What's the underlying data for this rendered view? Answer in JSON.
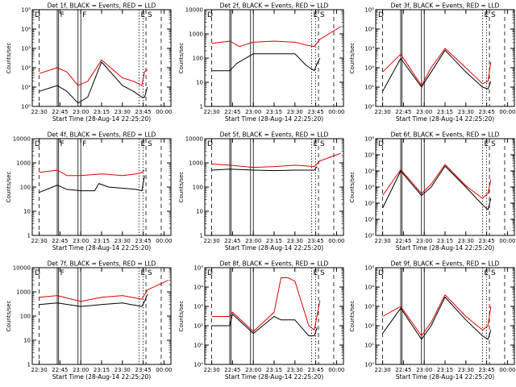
{
  "chart_data": [
    {
      "type": "line",
      "title": "Det 1f, BLACK = Events, RED = LLD",
      "xlabel": "Start Time (28-Aug-14 22:25:20)",
      "ylabel": "Counts/sec",
      "xlim": [
        "22:25",
        "00:05"
      ],
      "xticks": [
        "22:30",
        "22:45",
        "23:00",
        "23:15",
        "23:30",
        "23:45",
        "00:00"
      ],
      "ylim": [
        1,
        100000
      ],
      "yscale": "log",
      "yticks": [
        "10⁰",
        "10¹",
        "10²",
        "10³",
        "10⁴",
        "10⁵"
      ],
      "annotations": [
        "D",
        "F",
        "F",
        "E",
        "S"
      ],
      "series": [
        {
          "color": "#000000",
          "x": [
            "22:30",
            "22:43",
            "22:50",
            "22:58",
            "23:05",
            "23:15",
            "23:30",
            "23:38",
            "23:44",
            "23:46",
            "23:48"
          ],
          "y": [
            6,
            12,
            6,
            1.5,
            3,
            200,
            12,
            6,
            3,
            3,
            10
          ]
        },
        {
          "color": "#e00000",
          "x": [
            "22:30",
            "22:43",
            "22:50",
            "22:58",
            "23:05",
            "23:15",
            "23:30",
            "23:38",
            "23:44",
            "23:46",
            "23:48"
          ],
          "y": [
            50,
            100,
            60,
            12,
            20,
            250,
            30,
            20,
            12,
            60,
            80
          ]
        }
      ]
    },
    {
      "type": "line",
      "title": "Det 2f, BLACK = Events, RED = LLD",
      "xlabel": "Start Time (28-Aug-14 22:25:20)",
      "ylabel": "Counts/sec",
      "xlim": [
        "22:25",
        "00:05"
      ],
      "xticks": [
        "22:30",
        "22:45",
        "23:00",
        "23:15",
        "23:30",
        "23:45",
        "00:00"
      ],
      "ylim": [
        1,
        10000
      ],
      "yscale": "log",
      "yticks": [
        "1",
        "10",
        "100",
        "1000",
        "10000"
      ],
      "annotations": [
        "D",
        "E",
        "S"
      ],
      "series": [
        {
          "color": "#000000",
          "x": [
            "22:30",
            "22:43",
            "22:48",
            "23:00",
            "23:30",
            "23:38",
            "23:44",
            "23:46",
            "23:48"
          ],
          "y": [
            30,
            30,
            60,
            150,
            150,
            50,
            30,
            60,
            100
          ]
        },
        {
          "color": "#e00000",
          "x": [
            "22:30",
            "22:43",
            "22:50",
            "23:00",
            "23:15",
            "23:30",
            "23:38",
            "23:44",
            "23:48",
            "00:03"
          ],
          "y": [
            400,
            500,
            300,
            450,
            500,
            450,
            350,
            300,
            600,
            2000
          ]
        }
      ]
    },
    {
      "type": "line",
      "title": "Det 3f, BLACK = Events, RED = LLD",
      "xlabel": "Start Time (28-Aug-14 22:25:20)",
      "ylabel": "Counts/sec",
      "xlim": [
        "22:25",
        "00:05"
      ],
      "xticks": [
        "22:30",
        "22:45",
        "23:00",
        "23:15",
        "23:30",
        "23:45",
        "00:00"
      ],
      "ylim": [
        1,
        100000
      ],
      "yscale": "log",
      "yticks": [
        "10⁰",
        "10¹",
        "10²",
        "10³",
        "10⁴",
        "10⁵"
      ],
      "annotations": [
        "D",
        "E",
        "S"
      ],
      "series": [
        {
          "color": "#000000",
          "x": [
            "22:30",
            "22:43",
            "22:58",
            "23:05",
            "23:15",
            "23:30",
            "23:42",
            "23:46",
            "23:48"
          ],
          "y": [
            6,
            300,
            10,
            60,
            800,
            60,
            10,
            8,
            20
          ]
        },
        {
          "color": "#e00000",
          "x": [
            "22:30",
            "22:43",
            "22:58",
            "23:05",
            "23:15",
            "23:30",
            "23:42",
            "23:46",
            "23:48"
          ],
          "y": [
            60,
            500,
            12,
            100,
            1000,
            100,
            15,
            20,
            200
          ]
        }
      ]
    },
    {
      "type": "line",
      "title": "Det 4f, BLACK = Events, RED = LLD",
      "xlabel": "Start Time (28-Aug-14 22:25:20)",
      "ylabel": "Counts/sec",
      "xlim": [
        "22:25",
        "00:05"
      ],
      "xticks": [
        "22:30",
        "22:45",
        "23:00",
        "23:15",
        "23:30",
        "23:45",
        "00:00"
      ],
      "ylim": [
        1,
        10000
      ],
      "yscale": "log",
      "yticks": [
        "1",
        "10",
        "100",
        "1000",
        "10000"
      ],
      "annotations": [
        "D",
        "F",
        "F",
        "E",
        "S"
      ],
      "series": [
        {
          "color": "#000000",
          "x": [
            "22:30",
            "22:43",
            "22:50",
            "23:00",
            "23:10",
            "23:13",
            "23:20",
            "23:40",
            "23:44",
            "23:46"
          ],
          "y": [
            60,
            120,
            80,
            70,
            70,
            140,
            100,
            80,
            70,
            300
          ]
        },
        {
          "color": "#e00000",
          "x": [
            "22:30",
            "22:43",
            "22:50",
            "23:00",
            "23:15",
            "23:30",
            "23:40",
            "23:44",
            "23:46"
          ],
          "y": [
            400,
            500,
            300,
            300,
            350,
            300,
            350,
            400,
            500
          ]
        }
      ]
    },
    {
      "type": "line",
      "title": "Det 5f, BLACK = Events, RED = LLD",
      "xlabel": "Start Time (28-Aug-14 22:25:20)",
      "ylabel": "Counts/sec",
      "xlim": [
        "22:25",
        "00:05"
      ],
      "xticks": [
        "22:30",
        "22:45",
        "23:00",
        "23:15",
        "23:30",
        "23:45",
        "00:00"
      ],
      "ylim": [
        1,
        10000
      ],
      "yscale": "log",
      "yticks": [
        "1",
        "10",
        "100",
        "1000",
        "10000"
      ],
      "annotations": [
        "D",
        "E",
        "S"
      ],
      "series": [
        {
          "color": "#000000",
          "x": [
            "22:30",
            "22:43",
            "23:00",
            "23:15",
            "23:30",
            "23:44",
            "23:46"
          ],
          "y": [
            500,
            550,
            500,
            480,
            500,
            500,
            700
          ]
        },
        {
          "color": "#e00000",
          "x": [
            "22:30",
            "22:43",
            "23:00",
            "23:15",
            "23:30",
            "23:44",
            "23:48",
            "00:03"
          ],
          "y": [
            900,
            800,
            650,
            700,
            800,
            700,
            1200,
            2500
          ]
        }
      ]
    },
    {
      "type": "line",
      "title": "Det 6f, BLACK = Events, RED = LLD",
      "xlabel": "Start Time (28-Aug-14 22:25:20)",
      "ylabel": "Counts/sec",
      "xlim": [
        "22:25",
        "00:05"
      ],
      "xticks": [
        "22:30",
        "22:45",
        "23:00",
        "23:15",
        "23:30",
        "23:45",
        "00:00"
      ],
      "ylim": [
        1,
        1000000
      ],
      "yscale": "log",
      "yticks": [
        "10⁰",
        "10¹",
        "10²",
        "10³",
        "10⁴",
        "10⁵",
        "10⁶"
      ],
      "annotations": [
        "D",
        "E",
        "S"
      ],
      "series": [
        {
          "color": "#000000",
          "x": [
            "22:30",
            "22:43",
            "22:58",
            "23:05",
            "23:15",
            "23:30",
            "23:42",
            "23:46",
            "23:48"
          ],
          "y": [
            50,
            10000,
            300,
            1000,
            20000,
            1000,
            80,
            40,
            200
          ]
        },
        {
          "color": "#e00000",
          "x": [
            "22:30",
            "22:43",
            "22:58",
            "23:05",
            "23:15",
            "23:30",
            "23:42",
            "23:46",
            "23:48"
          ],
          "y": [
            300,
            12000,
            400,
            1500,
            25000,
            1200,
            200,
            400,
            3000
          ]
        }
      ]
    },
    {
      "type": "line",
      "title": "Det 7f, BLACK = Events, RED = LLD",
      "xlabel": "Start Time (28-Aug-14 22:25:20)",
      "ylabel": "Counts/sec",
      "xlim": [
        "22:25",
        "00:05"
      ],
      "xticks": [
        "22:30",
        "22:45",
        "23:00",
        "23:15",
        "23:30",
        "23:45",
        "00:00"
      ],
      "ylim": [
        1,
        10000
      ],
      "yscale": "log",
      "yticks": [
        "1",
        "10",
        "100",
        "1000",
        "10000"
      ],
      "annotations": [
        "D",
        "F",
        "E",
        "S"
      ],
      "series": [
        {
          "color": "#000000",
          "x": [
            "22:30",
            "22:43",
            "23:00",
            "23:15",
            "23:30",
            "23:44",
            "23:46",
            "23:48"
          ],
          "y": [
            300,
            350,
            250,
            300,
            350,
            250,
            400,
            800
          ]
        },
        {
          "color": "#e00000",
          "x": [
            "22:30",
            "22:43",
            "23:00",
            "23:15",
            "23:30",
            "23:44",
            "23:48",
            "00:03"
          ],
          "y": [
            600,
            700,
            400,
            600,
            700,
            500,
            1200,
            3000
          ]
        }
      ]
    },
    {
      "type": "line",
      "title": "Det 8f, BLACK = Events, RED = LLD",
      "xlabel": "Start Time (28-Aug-14 22:25:20)",
      "ylabel": "Counts/sec",
      "xlim": [
        "22:25",
        "00:05"
      ],
      "xticks": [
        "22:30",
        "22:45",
        "23:00",
        "23:15",
        "23:30",
        "23:45",
        "00:00"
      ],
      "ylim": [
        1,
        100000
      ],
      "yscale": "log",
      "yticks": [
        "10⁰",
        "10¹",
        "10²",
        "10³",
        "10⁴",
        "10⁵"
      ],
      "annotations": [
        "D",
        "E",
        "S"
      ],
      "series": [
        {
          "color": "#000000",
          "x": [
            "22:30",
            "22:43",
            "22:45",
            "23:00",
            "23:15",
            "23:20",
            "23:30",
            "23:40",
            "23:44",
            "23:46"
          ],
          "y": [
            100,
            100,
            400,
            40,
            300,
            200,
            200,
            30,
            30,
            80
          ]
        },
        {
          "color": "#e00000",
          "x": [
            "22:30",
            "22:43",
            "22:45",
            "23:00",
            "23:15",
            "23:20",
            "23:25",
            "23:30",
            "23:40",
            "23:44",
            "23:48"
          ],
          "y": [
            300,
            300,
            500,
            50,
            500,
            30000,
            30000,
            20000,
            100,
            60,
            2000
          ]
        }
      ]
    },
    {
      "type": "line",
      "title": "Det 9f, BLACK = Events, RED = LLD",
      "xlabel": "Start Time (28-Aug-14 22:25:20)",
      "ylabel": "Counts/sec",
      "xlim": [
        "22:25",
        "00:05"
      ],
      "xticks": [
        "22:30",
        "22:45",
        "23:00",
        "23:15",
        "23:30",
        "23:45",
        "00:00"
      ],
      "ylim": [
        1,
        100000
      ],
      "yscale": "log",
      "yticks": [
        "10⁰",
        "10¹",
        "10²",
        "10³",
        "10⁴",
        "10⁵"
      ],
      "annotations": [
        "D",
        "E",
        "S"
      ],
      "series": [
        {
          "color": "#000000",
          "x": [
            "22:30",
            "22:43",
            "22:58",
            "23:05",
            "23:15",
            "23:30",
            "23:42",
            "23:46",
            "23:48"
          ],
          "y": [
            40,
            800,
            20,
            100,
            3000,
            200,
            30,
            20,
            60
          ]
        },
        {
          "color": "#e00000",
          "x": [
            "22:30",
            "22:43",
            "22:58",
            "23:05",
            "23:15",
            "23:30",
            "23:42",
            "23:46",
            "23:48"
          ],
          "y": [
            300,
            1000,
            30,
            150,
            4000,
            300,
            60,
            100,
            1000
          ]
        }
      ]
    }
  ]
}
